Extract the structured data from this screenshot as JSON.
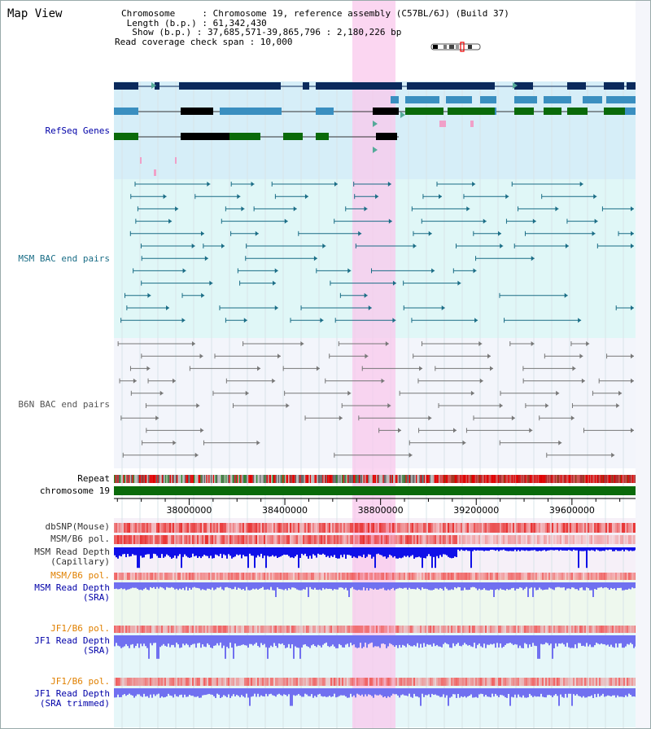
{
  "header": {
    "title": "Map View"
  },
  "info": {
    "chromosome": "Chromosome     : Chromosome 19, reference assembly (C57BL/6J) (Build 37)",
    "length": " Length (b.p.) : 61,342,430",
    "show": "  Show (b.p.) : 37,685,571-39,865,796 : 2,180,226 bp",
    "coverage": "Read coverage check span : 10,000"
  },
  "tracks": {
    "refseq": "RefSeq Genes",
    "msm_bac": "MSM BAC end pairs",
    "b6n_bac": "B6N BAC end pairs",
    "repeat": "Repeat",
    "chromosome": "chromosome 19",
    "dbsnp": "dbSNP(Mouse)",
    "msm_pol1": "MSM/B6 pol.",
    "msm_depth_cap_1": "MSM Read Depth",
    "msm_depth_cap_2": "(Capillary)",
    "msm_pol2": "MSM/B6 pol.",
    "msm_depth_sra_1": "MSM Read Depth",
    "msm_depth_sra_2": "(SRA)",
    "jf1_pol1": "JF1/B6 pol.",
    "jf1_depth_sra_1": "JF1 Read Depth",
    "jf1_depth_sra_2": "(SRA)",
    "jf1_pol2": "JF1/B6 pol.",
    "jf1_depth_trim_1": "JF1 Read Depth",
    "jf1_depth_trim_2": "(SRA trimmed)"
  },
  "axis": {
    "ticks": [
      {
        "pos": 38000000,
        "label": "38000000"
      },
      {
        "pos": 38400000,
        "label": "38400000"
      },
      {
        "pos": 38800000,
        "label": "38800000"
      },
      {
        "pos": 39200000,
        "label": "39200000"
      },
      {
        "pos": 39600000,
        "label": "39600000"
      }
    ]
  },
  "colors": {
    "refseq_bg": "#d6eef8",
    "msm_bg": "#e0f7f7",
    "b6n_bg": "#f3f5fb",
    "highlight": "#f9c8ec",
    "gene_dark": "#0b2a5c",
    "gene_mid": "#3a8fc0",
    "gene_green": "#0a6a0a",
    "msm_line": "#1a6d86",
    "b6n_line": "#777777",
    "chromosome": "#0a6a0a",
    "depth_dark": "#1010e8",
    "depth_light": "#7070f0",
    "snp_red": "#e83030",
    "orange_label": "#e08000",
    "blue_label": "#0000a8"
  }
}
